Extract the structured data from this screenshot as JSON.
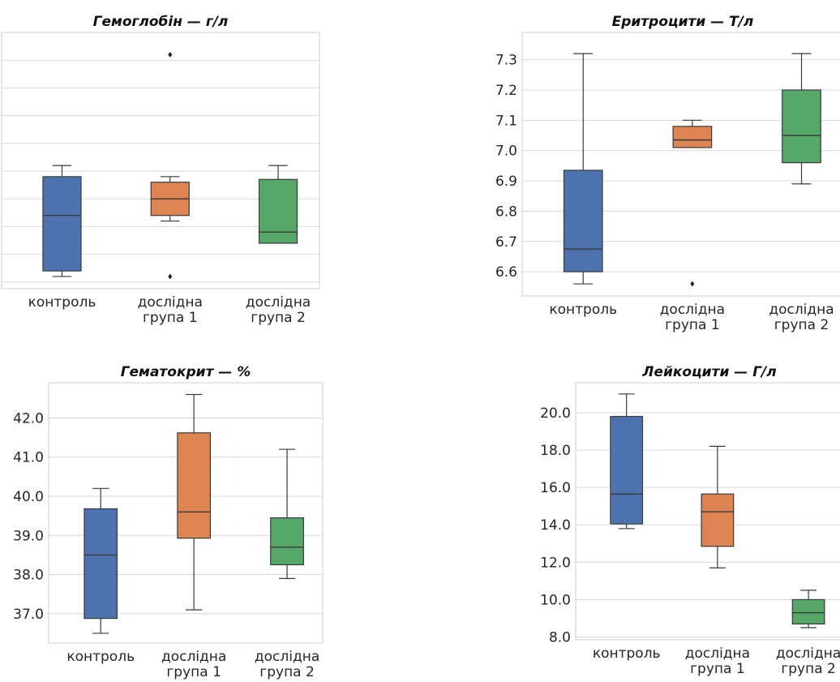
{
  "colors": {
    "control": "#4c72b0",
    "group1": "#dd8452",
    "group2": "#55a868",
    "grid": "#d9d9d9",
    "frame": "#cfcfcf",
    "line": "#3a3a3a",
    "text": "#262626"
  },
  "chart_data": [
    {
      "type": "box",
      "title": "Гемоглобін — г/л",
      "categories": [
        [
          "контроль"
        ],
        [
          "дослідна",
          "група 1"
        ],
        [
          "дослідна",
          "група 2"
        ]
      ],
      "yticks": [
        "137.5",
        "140.0",
        "142.5",
        "145.0",
        "147.5",
        "150.0",
        "152.5",
        "155.0",
        "157.5"
      ],
      "ylim": [
        136.9,
        160.0
      ],
      "grid": true,
      "boxes": [
        {
          "whislo": 138.0,
          "q1": 138.5,
          "med": 143.5,
          "q3": 147.0,
          "whishi": 148.0,
          "fliers": []
        },
        {
          "whislo": 143.0,
          "q1": 143.5,
          "med": 145.0,
          "q3": 146.5,
          "whishi": 147.0,
          "fliers": [
            158.0,
            138.0
          ]
        },
        {
          "whislo": 141.0,
          "q1": 141.0,
          "med": 142.0,
          "q3": 146.75,
          "whishi": 148.0,
          "fliers": []
        }
      ]
    },
    {
      "type": "box",
      "title": "Еритроцити — Т/л",
      "categories": [
        [
          "контроль"
        ],
        [
          "дослідна",
          "група 1"
        ],
        [
          "дослідна",
          "група 2"
        ]
      ],
      "yticks": [
        "6.6",
        "6.7",
        "6.8",
        "6.9",
        "7.0",
        "7.1",
        "7.2",
        "7.3"
      ],
      "ylim": [
        6.52,
        7.39
      ],
      "grid": true,
      "boxes": [
        {
          "whislo": 6.56,
          "q1": 6.6,
          "med": 6.675,
          "q3": 6.935,
          "whishi": 7.32,
          "fliers": []
        },
        {
          "whislo": 7.01,
          "q1": 7.01,
          "med": 7.035,
          "q3": 7.08,
          "whishi": 7.1,
          "fliers": [
            6.56
          ]
        },
        {
          "whislo": 6.89,
          "q1": 6.96,
          "med": 7.05,
          "q3": 7.2,
          "whishi": 7.32,
          "fliers": []
        }
      ]
    },
    {
      "type": "box",
      "title": "Гематокрит — %",
      "categories": [
        [
          "контроль"
        ],
        [
          "дослідна",
          "група 1"
        ],
        [
          "дослідна",
          "група 2"
        ]
      ],
      "yticks": [
        "37.0",
        "38.0",
        "39.0",
        "40.0",
        "41.0",
        "42.0"
      ],
      "ylim": [
        36.25,
        42.9
      ],
      "grid": true,
      "boxes": [
        {
          "whislo": 36.5,
          "q1": 36.88,
          "med": 38.5,
          "q3": 39.68,
          "whishi": 40.2,
          "fliers": []
        },
        {
          "whislo": 37.1,
          "q1": 38.93,
          "med": 39.6,
          "q3": 41.62,
          "whishi": 42.6,
          "fliers": []
        },
        {
          "whislo": 37.9,
          "q1": 38.25,
          "med": 38.7,
          "q3": 39.45,
          "whishi": 41.2,
          "fliers": []
        }
      ]
    },
    {
      "type": "box",
      "title": "Лейкоцити — Г/л",
      "categories": [
        [
          "контроль"
        ],
        [
          "дослідна",
          "група 1"
        ],
        [
          "дослідна",
          "група 2"
        ]
      ],
      "yticks": [
        "8.0",
        "10.0",
        "12.0",
        "14.0",
        "16.0",
        "18.0",
        "20.0"
      ],
      "ylim": [
        7.85,
        21.6
      ],
      "grid": true,
      "boxes": [
        {
          "whislo": 13.8,
          "q1": 14.05,
          "med": 15.65,
          "q3": 19.8,
          "whishi": 21.0,
          "fliers": []
        },
        {
          "whislo": 11.7,
          "q1": 12.85,
          "med": 14.7,
          "q3": 15.65,
          "whishi": 18.2,
          "fliers": []
        },
        {
          "whislo": 8.5,
          "q1": 8.7,
          "med": 9.3,
          "q3": 10.0,
          "whishi": 10.5,
          "fliers": []
        }
      ]
    }
  ]
}
